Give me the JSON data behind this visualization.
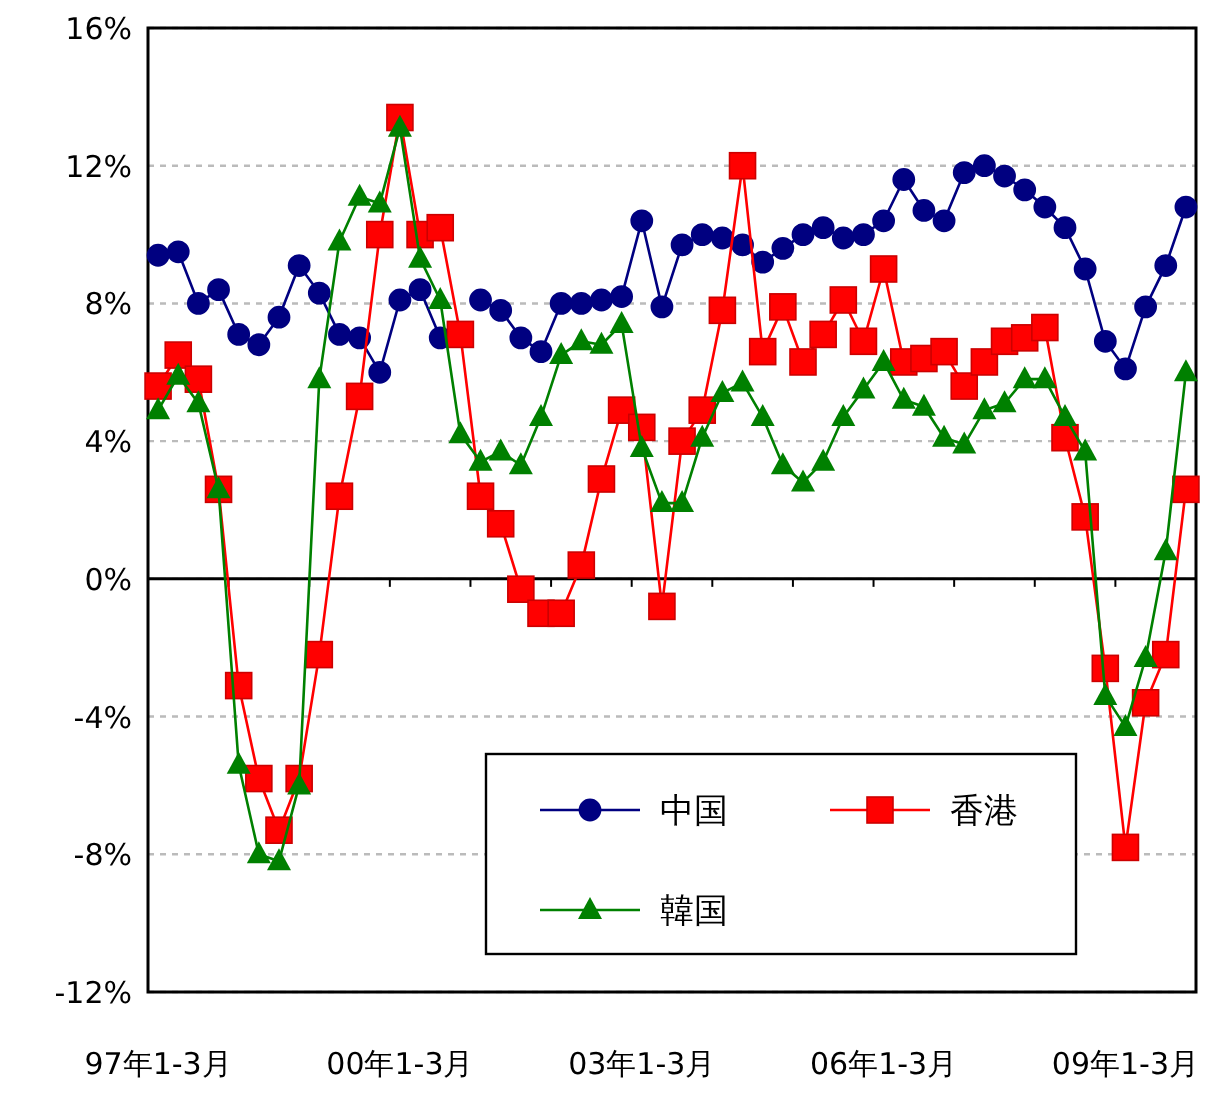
{
  "chart_data": {
    "type": "line",
    "categories": [
      "97年1-3月",
      null,
      null,
      null,
      null,
      null,
      null,
      null,
      null,
      null,
      null,
      null,
      "00年1-3月",
      null,
      null,
      null,
      null,
      null,
      null,
      null,
      null,
      null,
      null,
      null,
      "03年1-3月",
      null,
      null,
      null,
      null,
      null,
      null,
      null,
      null,
      null,
      null,
      null,
      "06年1-3月",
      null,
      null,
      null,
      null,
      null,
      null,
      null,
      null,
      null,
      null,
      null,
      "09年1-3月",
      null,
      null,
      null
    ],
    "ylim": [
      -12,
      16
    ],
    "yticks": [
      {
        "value": -12,
        "label": "-12%"
      },
      {
        "value": -8,
        "label": "-8%"
      },
      {
        "value": -4,
        "label": "-4%"
      },
      {
        "value": 0,
        "label": "0%"
      },
      {
        "value": 4,
        "label": "4%"
      },
      {
        "value": 8,
        "label": "8%"
      },
      {
        "value": 12,
        "label": "12%"
      },
      {
        "value": 16,
        "label": "16%"
      }
    ],
    "grid": "y",
    "legend": "bottom right",
    "series": [
      {
        "name": "中国",
        "color": "#000080",
        "marker": "circle",
        "values": [
          9.4,
          9.5,
          8.0,
          8.4,
          7.1,
          6.8,
          7.6,
          9.1,
          8.3,
          7.1,
          7.0,
          6.0,
          8.1,
          8.4,
          7.0,
          null,
          8.1,
          7.8,
          7.0,
          6.6,
          8.0,
          8.0,
          8.1,
          8.2,
          10.4,
          7.9,
          9.7,
          10.0,
          9.9,
          9.7,
          9.2,
          9.6,
          10.0,
          10.2,
          9.9,
          10.0,
          10.4,
          11.6,
          10.7,
          10.4,
          11.8,
          12.0,
          11.7,
          11.3,
          10.8,
          10.2,
          9.0,
          6.9,
          6.1,
          7.9,
          9.1,
          10.8
        ]
      },
      {
        "name": "香港",
        "color": "#ff0000",
        "marker": "square",
        "values": [
          5.6,
          6.5,
          5.8,
          2.6,
          -3.1,
          -5.8,
          -7.3,
          -5.8,
          -2.2,
          2.4,
          5.3,
          10.0,
          13.4,
          10.0,
          10.2,
          7.1,
          2.4,
          1.6,
          -0.3,
          -1.0,
          -1.0,
          0.4,
          2.9,
          4.9,
          4.4,
          -0.8,
          4.0,
          4.9,
          7.8,
          12.0,
          6.6,
          7.9,
          6.3,
          7.1,
          8.1,
          6.9,
          9.0,
          6.3,
          6.4,
          6.6,
          5.6,
          6.3,
          6.9,
          7.0,
          7.3,
          4.1,
          1.8,
          -2.6,
          -7.8,
          -3.6,
          -2.2,
          2.6
        ]
      },
      {
        "name": "韓国",
        "color": "#008000",
        "marker": "triangle",
        "values": [
          4.9,
          5.9,
          5.1,
          2.6,
          -5.4,
          -8.0,
          -8.2,
          -6.0,
          5.8,
          9.8,
          11.1,
          10.9,
          13.1,
          9.3,
          8.1,
          4.2,
          3.4,
          3.7,
          3.3,
          4.7,
          6.5,
          6.9,
          6.8,
          7.4,
          3.8,
          2.2,
          2.2,
          4.1,
          5.4,
          5.7,
          4.7,
          3.3,
          2.8,
          3.4,
          4.7,
          5.5,
          6.3,
          5.2,
          5.0,
          4.1,
          3.9,
          4.9,
          5.1,
          5.8,
          5.8,
          4.7,
          3.7,
          -3.4,
          -4.3,
          -2.3,
          0.8,
          6.0
        ]
      }
    ]
  }
}
